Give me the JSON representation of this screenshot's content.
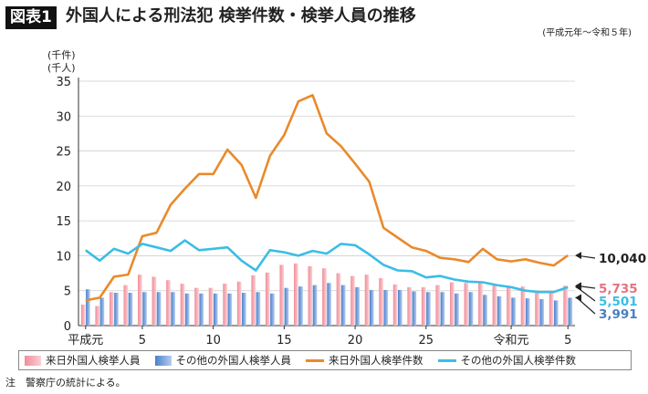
{
  "header": {
    "tag": "図表1",
    "title": "外国人による刑法犯 検挙件数・検挙人員の推移",
    "subtitle": "(平成元年〜令和５年)"
  },
  "footnote": "注　警察庁の統計による。",
  "colors": {
    "series0": "#f4a3ad",
    "series1": "#6d9ad8",
    "series2": "#e98a2b",
    "series3": "#3bbde6"
  },
  "chart_data": {
    "type": "bar",
    "unit_labels": [
      "(千件)",
      "(千人)"
    ],
    "ylim": [
      0,
      35
    ],
    "yticks": [
      0,
      5,
      10,
      15,
      20,
      25,
      30,
      35
    ],
    "x_tick_labels": [
      {
        "index": 0,
        "label": "平成元"
      },
      {
        "index": 4,
        "label": "5"
      },
      {
        "index": 9,
        "label": "10"
      },
      {
        "index": 14,
        "label": "15"
      },
      {
        "index": 19,
        "label": "20"
      },
      {
        "index": 24,
        "label": "25"
      },
      {
        "index": 30,
        "label": "令和元"
      },
      {
        "index": 34,
        "label": "5"
      }
    ],
    "grid": "horizontal",
    "legend_position": "bottom",
    "series": [
      {
        "name": "来日外国人検挙人員",
        "kind": "bar",
        "values": [
          3.0,
          2.8,
          4.8,
          5.8,
          7.3,
          7.0,
          6.5,
          6.0,
          5.4,
          5.4,
          6.0,
          6.3,
          7.2,
          7.6,
          8.7,
          8.9,
          8.5,
          8.2,
          7.5,
          7.1,
          7.3,
          6.8,
          5.9,
          5.5,
          5.5,
          5.8,
          6.2,
          6.1,
          6.1,
          5.9,
          5.7,
          5.6,
          4.8,
          5.0,
          5.7
        ]
      },
      {
        "name": "その他の外国人検挙人員",
        "kind": "bar",
        "values": [
          5.2,
          4.0,
          4.7,
          4.7,
          4.8,
          4.8,
          4.8,
          4.6,
          4.6,
          4.6,
          4.6,
          4.7,
          4.8,
          4.6,
          5.4,
          5.6,
          5.8,
          6.1,
          5.8,
          5.5,
          5.1,
          5.1,
          5.1,
          4.9,
          4.8,
          4.8,
          4.6,
          4.8,
          4.4,
          4.2,
          4.0,
          3.9,
          3.8,
          3.6,
          3.991
        ]
      },
      {
        "name": "来日外国人検挙件数",
        "kind": "line",
        "values": [
          3.6,
          4.0,
          7.0,
          7.3,
          12.8,
          13.3,
          17.3,
          19.6,
          21.7,
          21.7,
          25.2,
          23.0,
          18.3,
          24.3,
          27.3,
          32.1,
          33.0,
          27.5,
          25.7,
          23.2,
          20.6,
          14.0,
          12.6,
          11.2,
          10.7,
          9.7,
          9.5,
          9.1,
          11.0,
          9.5,
          9.2,
          9.5,
          9.0,
          8.6,
          10.04
        ]
      },
      {
        "name": "その他の外国人検挙件数",
        "kind": "line",
        "values": [
          10.8,
          9.3,
          11.0,
          10.3,
          11.7,
          11.2,
          10.7,
          12.2,
          10.8,
          11.0,
          11.2,
          9.3,
          7.9,
          10.8,
          10.5,
          10.0,
          10.7,
          10.3,
          11.7,
          11.5,
          10.2,
          8.7,
          7.9,
          7.8,
          6.9,
          7.1,
          6.6,
          6.3,
          6.2,
          5.8,
          5.5,
          5.0,
          4.8,
          4.8,
          5.501
        ]
      }
    ],
    "end_labels": [
      {
        "series": 2,
        "label": "10,040"
      },
      {
        "series": 0,
        "label": "5,735"
      },
      {
        "series": 3,
        "label": "5,501"
      },
      {
        "series": 1,
        "label": "3,991"
      }
    ]
  }
}
